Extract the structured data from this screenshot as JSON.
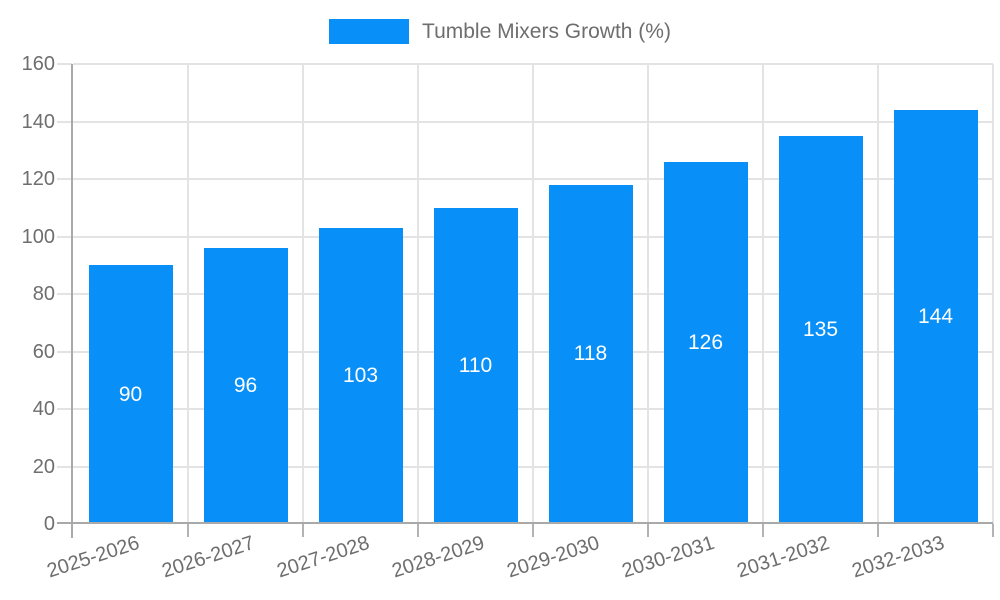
{
  "legend": {
    "items": [
      {
        "label": "Tumble Mixers Growth (%)",
        "color": "#0890F8"
      }
    ]
  },
  "chart_data": {
    "type": "bar",
    "title": "",
    "xlabel": "",
    "ylabel": "",
    "categories": [
      "2025-2026",
      "2026-2027",
      "2027-2028",
      "2028-2029",
      "2029-2030",
      "2030-2031",
      "2031-2032",
      "2032-2033"
    ],
    "series": [
      {
        "name": "Tumble Mixers Growth (%)",
        "values": [
          90,
          96,
          103,
          110,
          118,
          126,
          135,
          144
        ],
        "color": "#0890F8"
      }
    ],
    "value_labels_shown": true,
    "value_label_color": "#ffffff",
    "ylim": [
      0,
      160
    ],
    "ytick_step": 20,
    "yticks": [
      0,
      20,
      40,
      60,
      80,
      100,
      120,
      140,
      160
    ],
    "grid": true,
    "legend_position": "top-center",
    "x_tick_rotation_deg": -18,
    "colors": {
      "axis_text": "#6e6e6e",
      "grid_line": "#e3e3e3",
      "axis_line": "#a9a9a9",
      "x_tick_mark": "#b3b3b3",
      "background": "#ffffff"
    }
  }
}
